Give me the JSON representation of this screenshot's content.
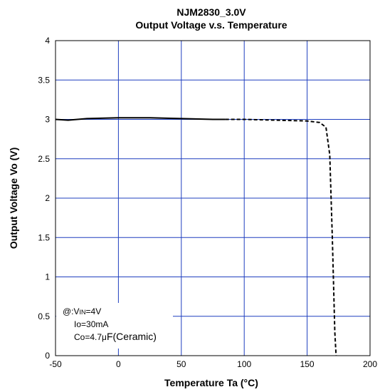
{
  "chart_data": {
    "type": "line",
    "title": "NJM2830_3.0V",
    "subtitle": "Output Voltage v.s. Temperature",
    "xlabel": "Temperature Ta (°C)",
    "ylabel": "Output Voltage Vo (V)",
    "xlim": [
      -50,
      200
    ],
    "ylim": [
      0,
      4
    ],
    "xticks": [
      -50,
      0,
      50,
      100,
      150,
      200
    ],
    "yticks": [
      0,
      0.5,
      1,
      1.5,
      2,
      2.5,
      3,
      3.5,
      4
    ],
    "xtick_labels": [
      "-50",
      "0",
      "50",
      "100",
      "150",
      "200"
    ],
    "ytick_labels": [
      "0",
      "0.5",
      "1",
      "1.5",
      "2",
      "2.5",
      "3",
      "3.5",
      "4"
    ],
    "grid": true,
    "series": [
      {
        "style": "solid",
        "color": "#000000",
        "x": [
          -50,
          -40,
          -25,
          0,
          25,
          50,
          75,
          85
        ],
        "y": [
          3.0,
          2.99,
          3.01,
          3.02,
          3.02,
          3.01,
          3.0,
          3.0
        ]
      },
      {
        "style": "dashed",
        "color": "#000000",
        "x": [
          85,
          100,
          125,
          150,
          160,
          165,
          168,
          170,
          172,
          173
        ],
        "y": [
          3.0,
          3.0,
          2.99,
          2.98,
          2.96,
          2.9,
          2.55,
          1.5,
          0.3,
          0.0
        ]
      }
    ],
    "annotation": {
      "line1_prefix": "@:V",
      "line1_sub": "IN",
      "line1_suffix": "=4V",
      "line2": "Io=30mA",
      "line3_prefix": "Co=4.7",
      "line3_mu": "μ",
      "line3_suffix": "F(Ceramic)"
    }
  }
}
